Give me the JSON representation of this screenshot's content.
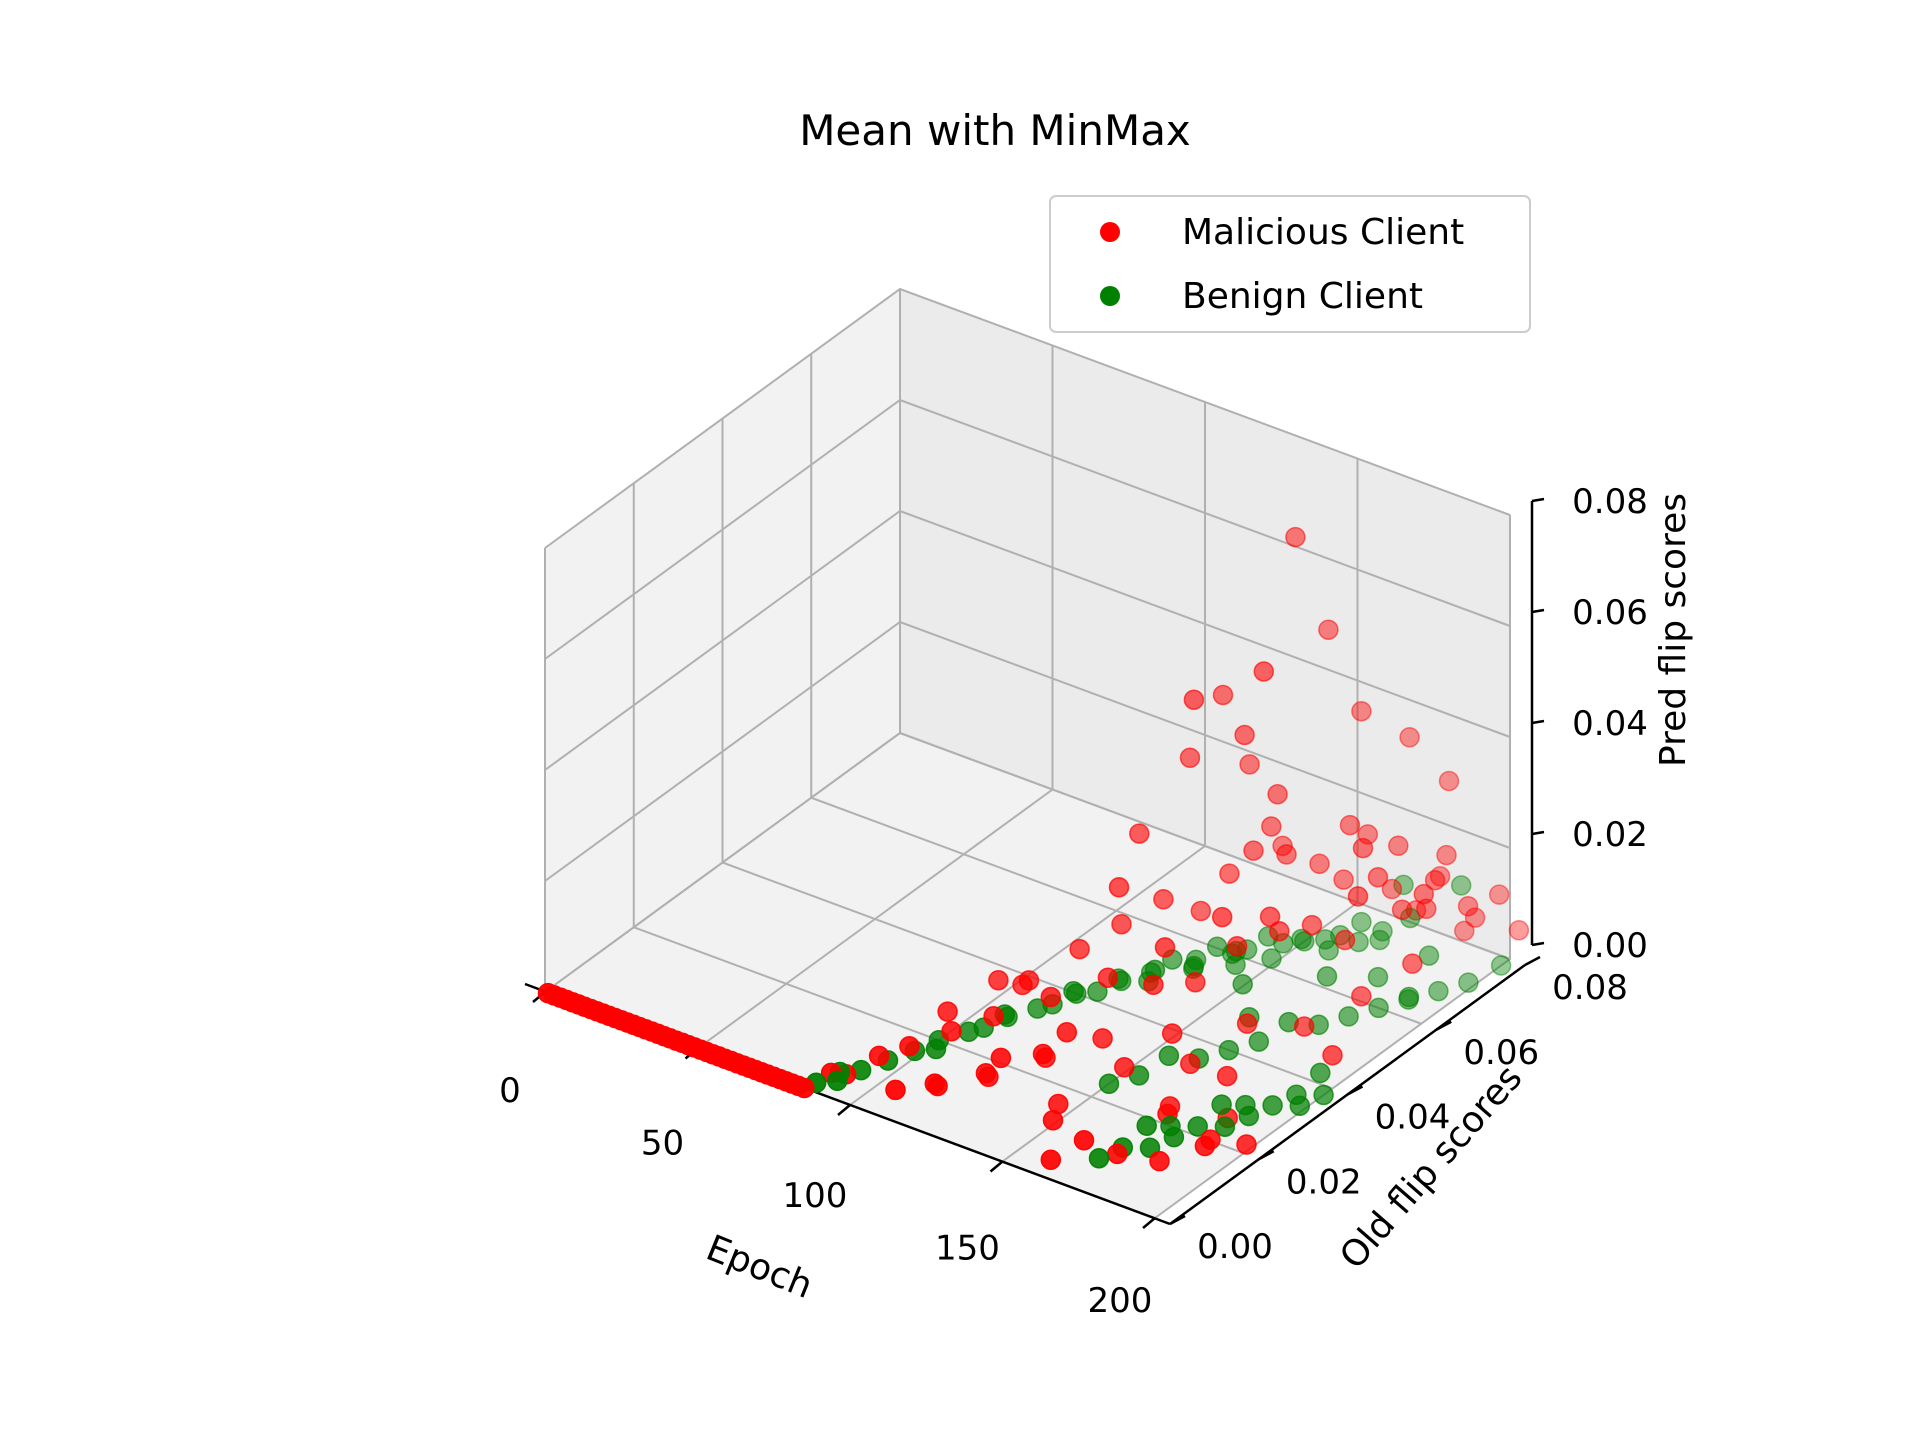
{
  "chart_data": {
    "type": "scatter",
    "projection": "3d",
    "title": "Mean with MinMax",
    "xlabel": "Epoch",
    "ylabel": "Old flip scores",
    "zlabel": "Pred flip scores",
    "xlim": [
      0,
      200
    ],
    "ylim": [
      0,
      0.08
    ],
    "zlim": [
      0,
      0.08
    ],
    "xticks": [
      "0",
      "50",
      "100",
      "150",
      "200"
    ],
    "yticks": [
      "0.00",
      "0.02",
      "0.04",
      "0.06",
      "0.08"
    ],
    "zticks": [
      "0.00",
      "0.02",
      "0.04",
      "0.06",
      "0.08"
    ],
    "grid": true,
    "legend": {
      "position": "top-right",
      "entries": [
        "Malicious Client",
        "Benign Client"
      ]
    },
    "colors": {
      "malicious": "#ff0000",
      "benign": "#008000"
    },
    "series": [
      {
        "name": "Malicious Client",
        "color": "#ff0000",
        "points": [
          [
            1,
            0.0,
            0.0
          ],
          [
            3,
            0.0,
            0.0
          ],
          [
            5,
            0.0,
            0.0
          ],
          [
            7,
            0.0,
            0.0
          ],
          [
            9,
            0.0,
            0.0
          ],
          [
            11,
            0.0,
            0.0
          ],
          [
            13,
            0.0,
            0.0
          ],
          [
            15,
            0.0,
            0.0
          ],
          [
            17,
            0.0,
            0.0
          ],
          [
            19,
            0.0,
            0.0
          ],
          [
            21,
            0.0,
            0.0
          ],
          [
            23,
            0.0,
            0.0
          ],
          [
            25,
            0.0,
            0.0
          ],
          [
            27,
            0.0,
            0.0
          ],
          [
            29,
            0.0,
            0.0
          ],
          [
            31,
            0.0,
            0.0
          ],
          [
            33,
            0.0,
            0.0
          ],
          [
            35,
            0.0,
            0.0
          ],
          [
            37,
            0.0,
            0.0
          ],
          [
            39,
            0.0,
            0.0
          ],
          [
            41,
            0.0,
            0.0
          ],
          [
            43,
            0.0,
            0.0
          ],
          [
            45,
            0.0,
            0.0
          ],
          [
            47,
            0.0,
            0.0
          ],
          [
            49,
            0.0,
            0.0
          ],
          [
            51,
            0.0,
            0.0
          ],
          [
            53,
            0.0,
            0.0
          ],
          [
            55,
            0.0,
            0.0
          ],
          [
            57,
            0.0,
            0.0
          ],
          [
            59,
            0.0,
            0.0
          ],
          [
            61,
            0.0,
            0.0
          ],
          [
            63,
            0.0,
            0.0
          ],
          [
            65,
            0.0,
            0.0
          ],
          [
            67,
            0.0,
            0.0
          ],
          [
            69,
            0.0,
            0.0
          ],
          [
            71,
            0.0,
            0.0
          ],
          [
            73,
            0.0,
            0.0
          ],
          [
            75,
            0.0,
            0.0
          ],
          [
            77,
            0.0,
            0.0
          ],
          [
            79,
            0.0,
            0.0
          ],
          [
            81,
            0.0,
            0.0
          ],
          [
            83,
            0.0,
            0.0
          ],
          [
            85,
            0.0,
            0.0
          ],
          [
            88,
            0.004,
            0.001
          ],
          [
            90,
            0.006,
            0.0
          ],
          [
            95,
            0.01,
            0.002
          ],
          [
            100,
            0.022,
            0.004
          ],
          [
            105,
            0.03,
            0.006
          ],
          [
            110,
            0.032,
            0.005
          ],
          [
            115,
            0.03,
            0.008
          ],
          [
            120,
            0.038,
            0.01
          ],
          [
            125,
            0.044,
            0.012
          ],
          [
            130,
            0.05,
            0.014
          ],
          [
            135,
            0.055,
            0.01
          ],
          [
            140,
            0.058,
            0.016
          ],
          [
            145,
            0.06,
            0.02
          ],
          [
            150,
            0.064,
            0.018
          ],
          [
            155,
            0.068,
            0.015
          ],
          [
            160,
            0.07,
            0.012
          ],
          [
            165,
            0.072,
            0.02
          ],
          [
            170,
            0.074,
            0.01
          ],
          [
            175,
            0.076,
            0.006
          ],
          [
            180,
            0.078,
            0.012
          ],
          [
            185,
            0.08,
            0.002
          ],
          [
            190,
            0.079,
            0.006
          ],
          [
            195,
            0.081,
            0.01
          ],
          [
            200,
            0.082,
            0.004
          ],
          [
            120,
            0.006,
            0.004
          ],
          [
            125,
            0.014,
            0.002
          ],
          [
            130,
            0.01,
            0.006
          ],
          [
            135,
            0.02,
            0.004
          ],
          [
            140,
            0.016,
            0.008
          ],
          [
            145,
            0.026,
            0.006
          ],
          [
            150,
            0.034,
            0.012
          ],
          [
            155,
            0.04,
            0.01
          ],
          [
            160,
            0.046,
            0.014
          ],
          [
            165,
            0.05,
            0.018
          ],
          [
            170,
            0.056,
            0.014
          ],
          [
            175,
            0.06,
            0.01
          ],
          [
            180,
            0.064,
            0.02
          ],
          [
            185,
            0.066,
            0.014
          ],
          [
            190,
            0.07,
            0.018
          ],
          [
            195,
            0.074,
            0.012
          ],
          [
            130,
            0.056,
            0.036
          ],
          [
            135,
            0.06,
            0.046
          ],
          [
            140,
            0.05,
            0.052
          ],
          [
            150,
            0.062,
            0.03
          ],
          [
            155,
            0.07,
            0.056
          ],
          [
            160,
            0.074,
            0.04
          ],
          [
            165,
            0.068,
            0.024
          ],
          [
            170,
            0.078,
            0.035
          ],
          [
            175,
            0.072,
            0.02
          ],
          [
            180,
            0.08,
            0.028
          ],
          [
            145,
            0.064,
            0.022
          ],
          [
            140,
            0.07,
            0.014
          ],
          [
            150,
            0.066,
            0.074
          ],
          [
            160,
            0.052,
            0.06
          ],
          [
            145,
            0.058,
            0.042
          ],
          [
            135,
            0.066,
            0.03
          ],
          [
            125,
            0.048,
            0.026
          ],
          [
            130,
            0.04,
            0.022
          ],
          [
            185,
            0.076,
            0.018
          ],
          [
            190,
            0.068,
            0.014
          ],
          [
            195,
            0.064,
            0.02
          ],
          [
            200,
            0.058,
            0.012
          ],
          [
            188,
            0.054,
            0.024
          ],
          [
            178,
            0.062,
            0.026
          ],
          [
            168,
            0.05,
            0.016
          ],
          [
            158,
            0.044,
            0.02
          ],
          [
            148,
            0.038,
            0.016
          ],
          [
            138,
            0.032,
            0.012
          ],
          [
            128,
            0.026,
            0.01
          ],
          [
            118,
            0.02,
            0.008
          ],
          [
            110,
            0.016,
            0.006
          ],
          [
            102,
            0.012,
            0.004
          ],
          [
            170,
            0.024,
            0.0
          ],
          [
            175,
            0.02,
            0.002
          ],
          [
            180,
            0.03,
            0.004
          ],
          [
            186,
            0.026,
            0.0
          ],
          [
            192,
            0.018,
            0.002
          ],
          [
            198,
            0.022,
            0.0
          ],
          [
            196,
            0.014,
            0.004
          ],
          [
            184,
            0.012,
            0.0
          ],
          [
            176,
            0.008,
            0.002
          ],
          [
            168,
            0.006,
            0.004
          ],
          [
            160,
            0.004,
            0.0
          ],
          [
            152,
            0.01,
            0.002
          ],
          [
            145,
            0.016,
            0.0
          ],
          [
            155,
            0.024,
            0.004
          ],
          [
            165,
            0.032,
            0.002
          ],
          [
            172,
            0.04,
            0.006
          ],
          [
            182,
            0.046,
            0.004
          ],
          [
            192,
            0.052,
            0.008
          ],
          [
            162,
            0.03,
            0.008
          ],
          [
            142,
            0.02,
            0.01
          ],
          [
            132,
            0.012,
            0.008
          ],
          [
            122,
            0.004,
            0.006
          ],
          [
            112,
            0.002,
            0.004
          ],
          [
            200,
            0.04,
            0.006
          ]
        ]
      },
      {
        "name": "Benign Client",
        "color": "#008000",
        "points": [
          [
            86,
            0.002,
            0.0
          ],
          [
            88,
            0.006,
            0.0
          ],
          [
            90,
            0.004,
            0.0
          ],
          [
            92,
            0.008,
            0.0
          ],
          [
            95,
            0.012,
            0.0
          ],
          [
            98,
            0.016,
            0.0
          ],
          [
            100,
            0.02,
            0.0
          ],
          [
            102,
            0.018,
            0.0
          ],
          [
            104,
            0.024,
            0.0
          ],
          [
            106,
            0.026,
            0.0
          ],
          [
            108,
            0.03,
            0.0
          ],
          [
            110,
            0.028,
            0.002
          ],
          [
            112,
            0.034,
            0.0
          ],
          [
            114,
            0.036,
            0.0
          ],
          [
            116,
            0.04,
            0.0
          ],
          [
            118,
            0.038,
            0.002
          ],
          [
            120,
            0.042,
            0.0
          ],
          [
            122,
            0.046,
            0.0
          ],
          [
            124,
            0.044,
            0.002
          ],
          [
            126,
            0.05,
            0.0
          ],
          [
            128,
            0.048,
            0.0
          ],
          [
            130,
            0.052,
            0.002
          ],
          [
            132,
            0.056,
            0.0
          ],
          [
            134,
            0.054,
            0.0
          ],
          [
            136,
            0.058,
            0.002
          ],
          [
            138,
            0.06,
            0.0
          ],
          [
            140,
            0.062,
            0.0
          ],
          [
            142,
            0.058,
            0.0
          ],
          [
            144,
            0.064,
            0.002
          ],
          [
            146,
            0.066,
            0.0
          ],
          [
            148,
            0.062,
            0.0
          ],
          [
            150,
            0.068,
            0.0
          ],
          [
            152,
            0.066,
            0.002
          ],
          [
            154,
            0.07,
            0.0
          ],
          [
            156,
            0.072,
            0.0
          ],
          [
            158,
            0.068,
            0.0
          ],
          [
            160,
            0.074,
            0.002
          ],
          [
            162,
            0.072,
            0.0
          ],
          [
            164,
            0.076,
            0.0
          ],
          [
            166,
            0.074,
            0.0
          ],
          [
            170,
            0.008,
            0.0
          ],
          [
            172,
            0.012,
            0.0
          ],
          [
            174,
            0.016,
            0.002
          ],
          [
            176,
            0.02,
            0.0
          ],
          [
            178,
            0.014,
            0.0
          ],
          [
            180,
            0.018,
            0.0
          ],
          [
            182,
            0.022,
            0.0
          ],
          [
            184,
            0.026,
            0.002
          ],
          [
            186,
            0.03,
            0.0
          ],
          [
            188,
            0.024,
            0.0
          ],
          [
            190,
            0.028,
            0.0
          ],
          [
            192,
            0.032,
            0.0
          ],
          [
            194,
            0.036,
            0.0
          ],
          [
            196,
            0.04,
            0.002
          ],
          [
            198,
            0.034,
            0.0
          ],
          [
            200,
            0.038,
            0.0
          ],
          [
            150,
            0.024,
            0.0
          ],
          [
            154,
            0.028,
            0.0
          ],
          [
            158,
            0.032,
            0.002
          ],
          [
            162,
            0.036,
            0.0
          ],
          [
            166,
            0.04,
            0.0
          ],
          [
            170,
            0.044,
            0.0
          ],
          [
            174,
            0.048,
            0.002
          ],
          [
            178,
            0.052,
            0.0
          ],
          [
            182,
            0.056,
            0.0
          ],
          [
            186,
            0.06,
            0.0
          ],
          [
            190,
            0.064,
            0.0
          ],
          [
            194,
            0.068,
            0.0
          ],
          [
            198,
            0.072,
            0.0
          ],
          [
            200,
            0.078,
            0.0
          ],
          [
            168,
            0.078,
            0.008
          ],
          [
            176,
            0.074,
            0.006
          ],
          [
            184,
            0.08,
            0.01
          ],
          [
            188,
            0.07,
            0.004
          ],
          [
            140,
            0.05,
            0.004
          ],
          [
            136,
            0.044,
            0.006
          ],
          [
            148,
            0.054,
            0.006
          ],
          [
            156,
            0.05,
            0.004
          ],
          [
            164,
            0.046,
            0.002
          ],
          [
            172,
            0.058,
            0.004
          ],
          [
            180,
            0.064,
            0.002
          ],
          [
            196,
            0.06,
            0.004
          ]
        ]
      }
    ]
  }
}
